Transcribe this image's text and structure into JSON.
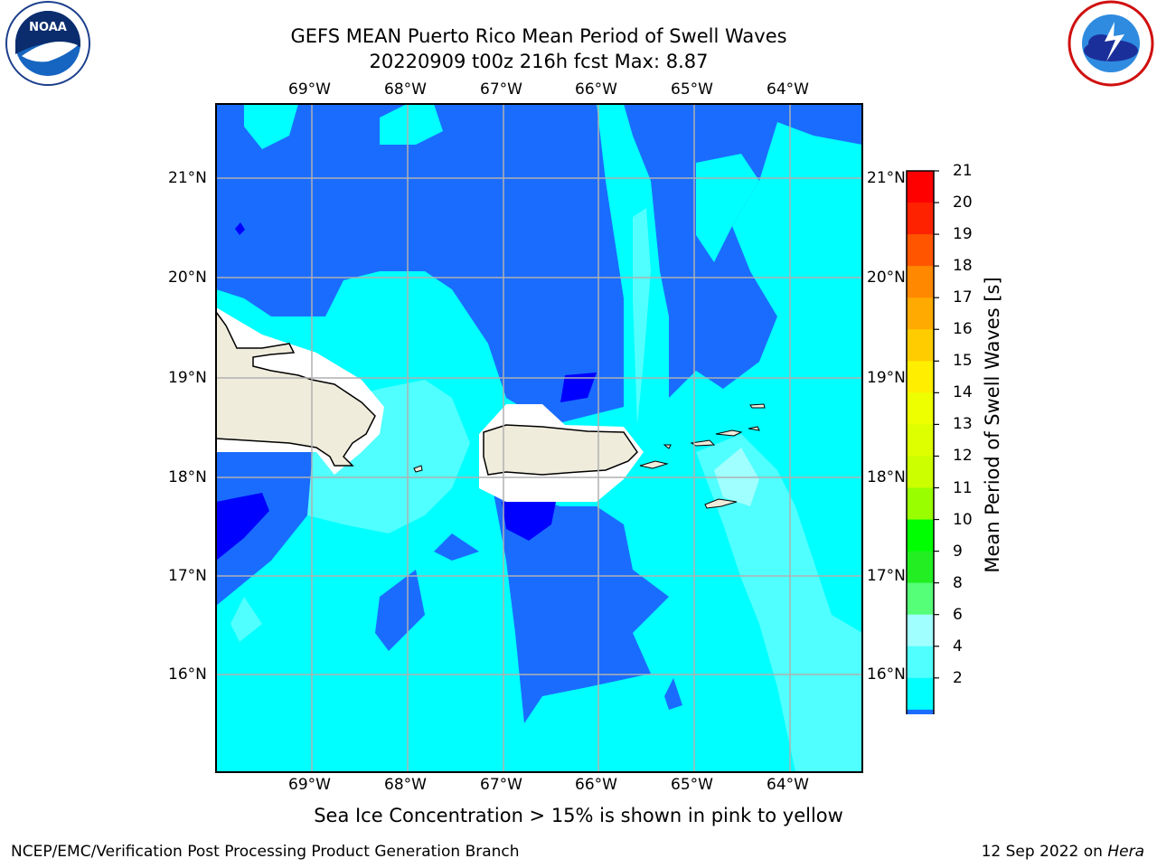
{
  "header": {
    "title_line1": "GEFS MEAN Puerto Rico Mean Period of Swell Waves",
    "title_line2": "20220909 t00z 216h fcst   Max: 8.87"
  },
  "map": {
    "lon_labels": [
      "69°W",
      "68°W",
      "67°W",
      "66°W",
      "65°W",
      "64°W"
    ],
    "lat_labels": [
      "21°N",
      "20°N",
      "19°N",
      "18°N",
      "17°N",
      "16°N"
    ],
    "ocean_colors": {
      "2-4": "#1a6cff",
      "4-6": "#00ffff",
      "6-8": "#50ffff",
      "8-9": "#a0ffff",
      "lt2": "#0000ff",
      "land": "#efecdc"
    }
  },
  "colorbar": {
    "title": "Mean Period of Swell Waves [s]",
    "ticks": [
      "21",
      "20",
      "19",
      "18",
      "17",
      "16",
      "15",
      "14",
      "13",
      "12",
      "11",
      "10",
      "9",
      "8",
      "6",
      "4",
      "2"
    ],
    "colors": [
      "#ff0000",
      "#ff2200",
      "#ff5500",
      "#ff8800",
      "#ffaa00",
      "#ffcc00",
      "#ffee00",
      "#eeff00",
      "#ddff00",
      "#ccff00",
      "#99ff00",
      "#00ff00",
      "#22ee22",
      "#55ff77",
      "#a0ffff",
      "#50ffff",
      "#00ffff",
      "#1a6cff"
    ],
    "under_color": "#0000ff"
  },
  "note": "Sea Ice Concentration > 15% is shown in pink to yellow",
  "footer": {
    "left": "NCEP/EMC/Verification Post Processing Product Generation Branch",
    "right_prefix": "12 Sep 2022 on ",
    "right_host": "Hera"
  }
}
